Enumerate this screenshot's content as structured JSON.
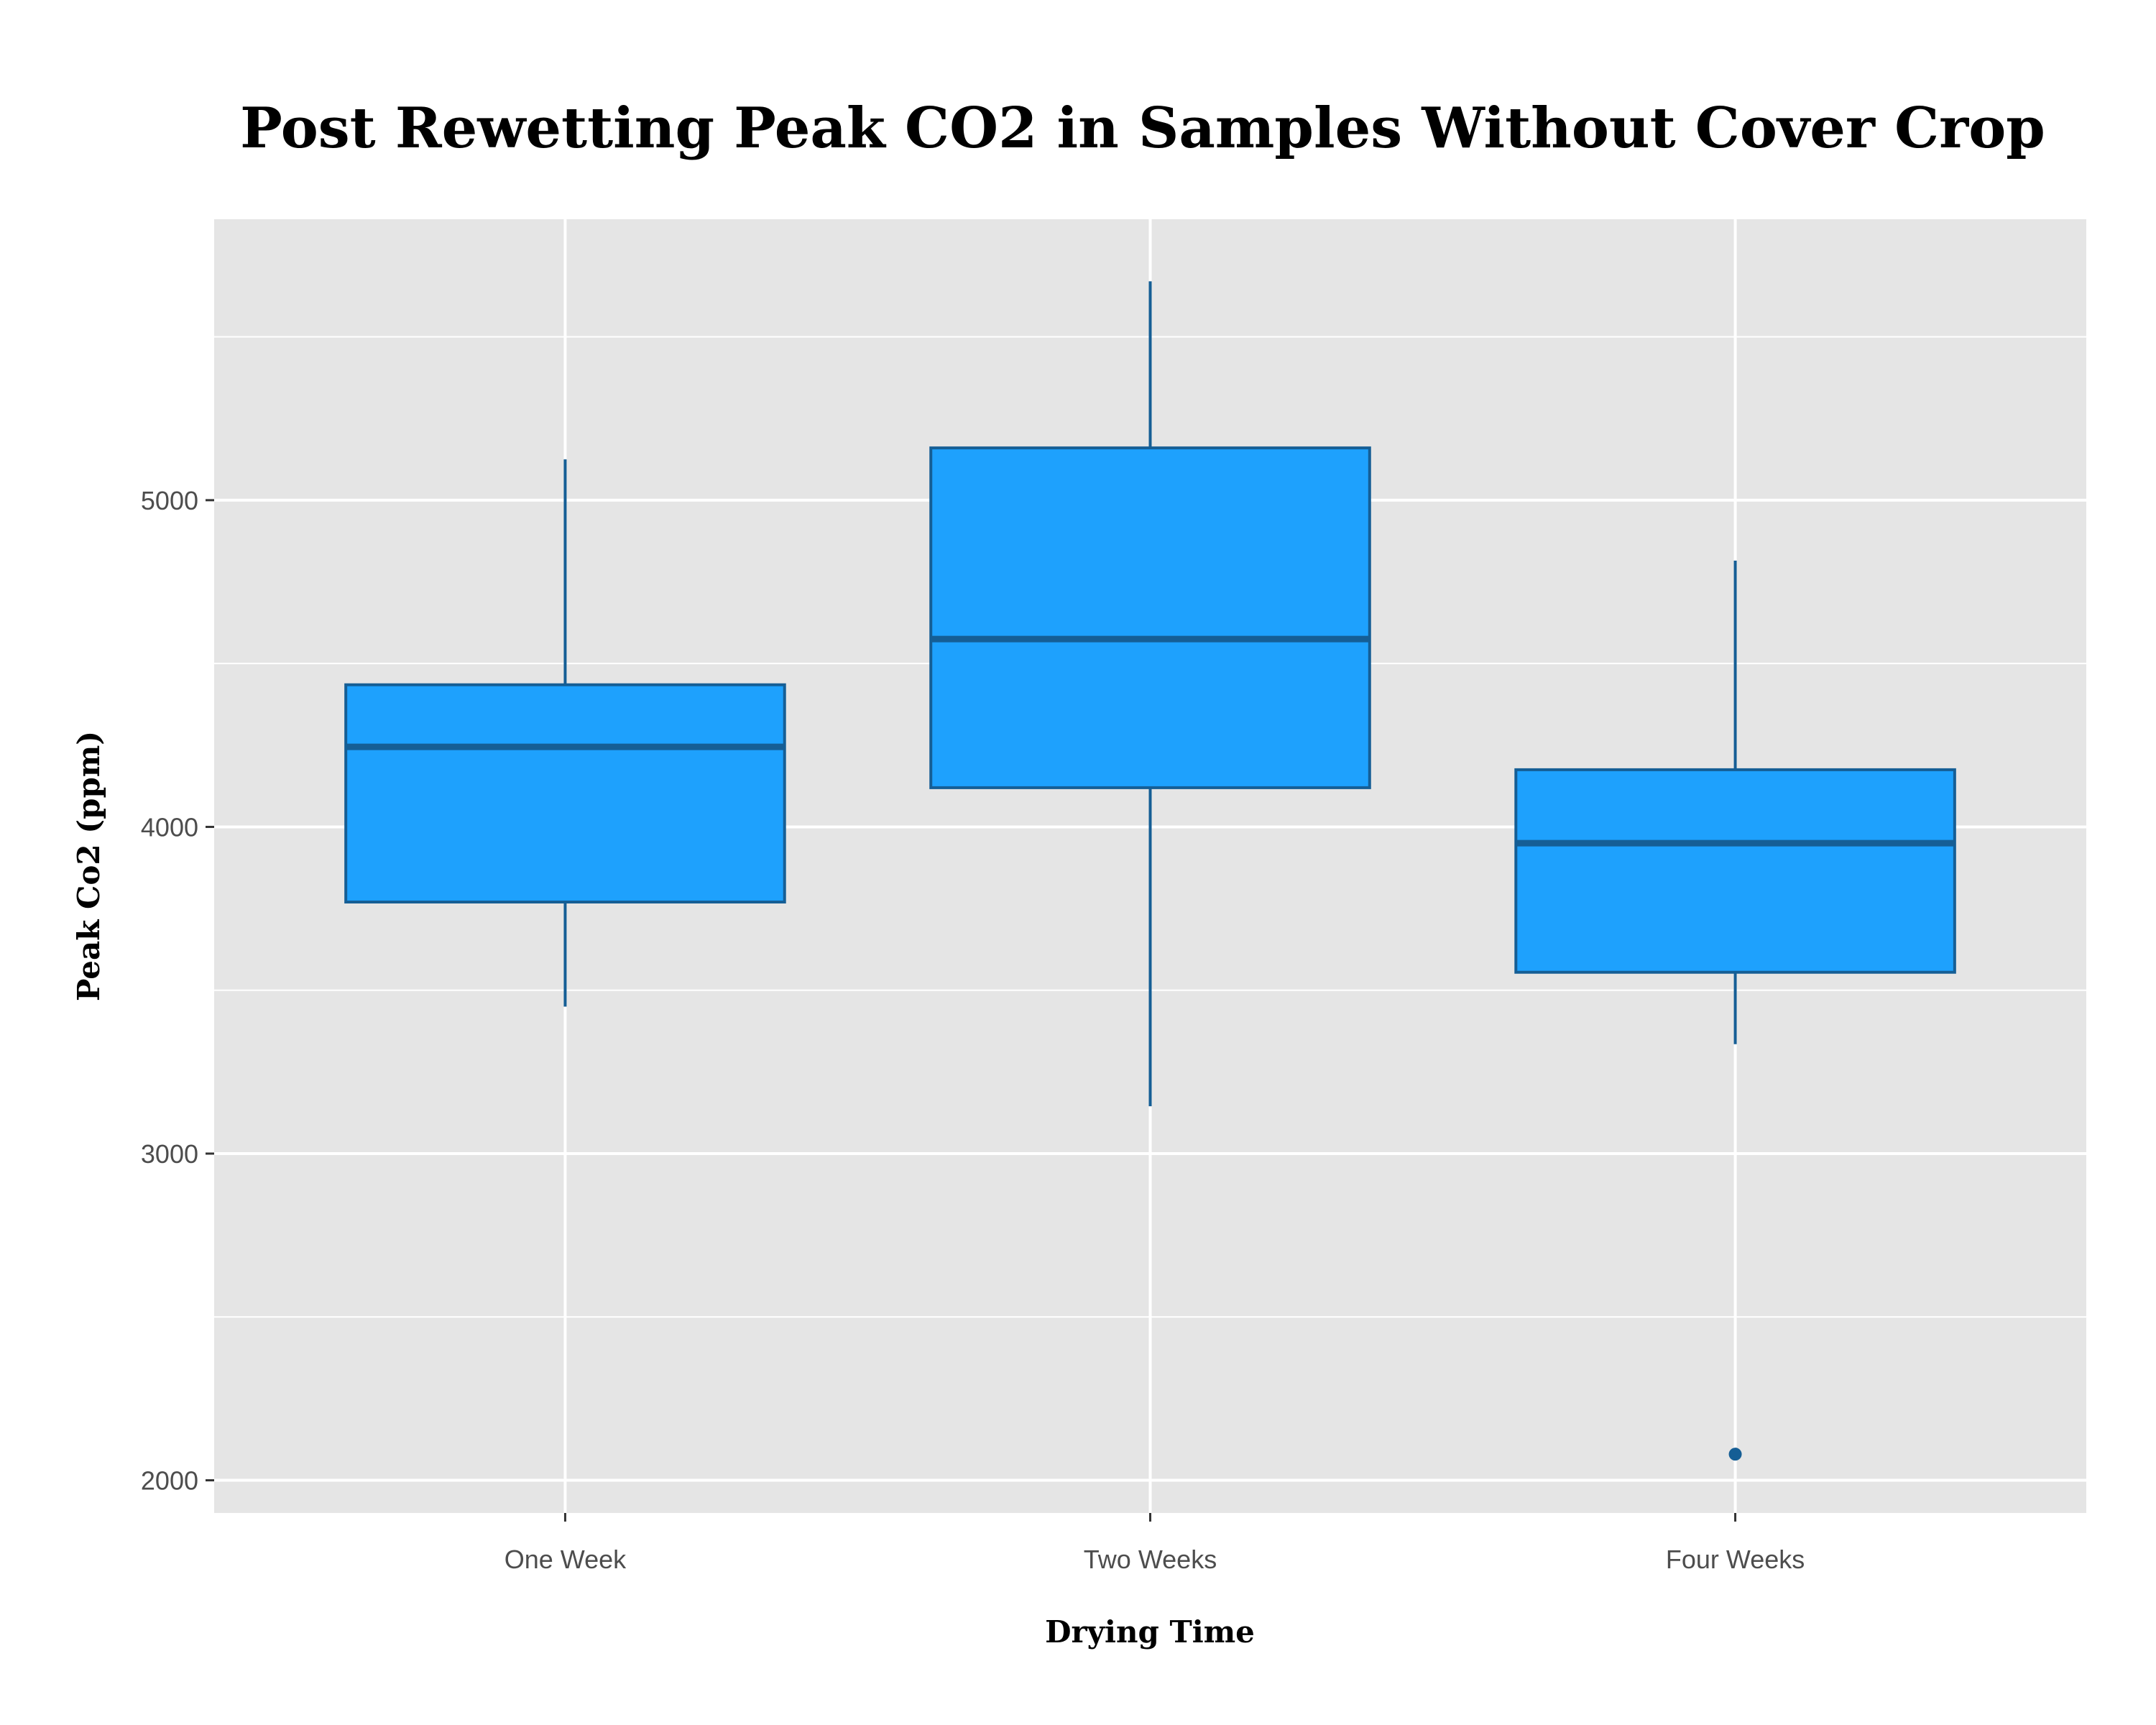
{
  "chart_data": {
    "type": "boxplot",
    "title": "Post Rewetting Peak CO2 in Samples Without Cover Crop",
    "xlabel": "Drying Time",
    "ylabel": "Peak Co2 (ppm)",
    "ylim": [
      1900,
      5860
    ],
    "yticks": [
      "2000",
      "3000",
      "4000",
      "5000"
    ],
    "ytick_values": [
      2000,
      3000,
      4000,
      5000
    ],
    "grid": true,
    "categories": [
      "One Week",
      "Two Weeks",
      "Four Weeks"
    ],
    "boxes": [
      {
        "category": "One Week",
        "whisker_low": 3450,
        "q1": 3770,
        "median": 4245,
        "q3": 4435,
        "whisker_high": 5125,
        "outliers": []
      },
      {
        "category": "Two Weeks",
        "whisker_low": 3145,
        "q1": 4120,
        "median": 4575,
        "q3": 5160,
        "whisker_high": 5670,
        "outliers": []
      },
      {
        "category": "Four Weeks",
        "whisker_low": 3335,
        "q1": 3555,
        "median": 3950,
        "q3": 4175,
        "whisker_high": 4815,
        "outliers": [
          2080
        ]
      }
    ],
    "colors": {
      "box_fill": "#1ea1fd",
      "box_outline": "#155e95",
      "panel": "#e5e5e5",
      "grid": "#ffffff"
    }
  }
}
